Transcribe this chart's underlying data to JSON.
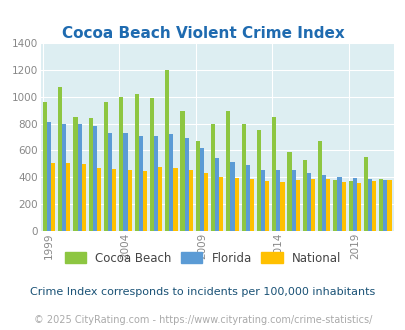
{
  "title": "Cocoa Beach Violent Crime Index",
  "subtitle": "Crime Index corresponds to incidents per 100,000 inhabitants",
  "footer": "© 2025 CityRating.com - https://www.cityrating.com/crime-statistics/",
  "years": [
    1999,
    2000,
    2001,
    2002,
    2003,
    2004,
    2005,
    2006,
    2007,
    2008,
    2009,
    2010,
    2011,
    2012,
    2013,
    2014,
    2015,
    2016,
    2017,
    2018,
    2019,
    2020,
    2021
  ],
  "cocoa_beach": [
    960,
    1070,
    850,
    840,
    960,
    1000,
    1020,
    990,
    1200,
    890,
    670,
    800,
    890,
    800,
    750,
    845,
    585,
    530,
    670,
    380,
    375,
    550,
    390
  ],
  "florida": [
    810,
    800,
    800,
    780,
    730,
    730,
    710,
    710,
    725,
    690,
    615,
    545,
    510,
    490,
    455,
    455,
    455,
    430,
    415,
    400,
    395,
    390,
    380
  ],
  "national": [
    505,
    505,
    500,
    470,
    465,
    455,
    450,
    475,
    470,
    455,
    430,
    405,
    395,
    390,
    370,
    365,
    380,
    385,
    390,
    365,
    360,
    375,
    380
  ],
  "bar_colors": {
    "cocoa_beach": "#8dc641",
    "florida": "#5b9bd5",
    "national": "#ffc000"
  },
  "bg_color": "#ddeef2",
  "ylim": [
    0,
    1400
  ],
  "yticks": [
    0,
    200,
    400,
    600,
    800,
    1000,
    1200,
    1400
  ],
  "xtick_years": [
    1999,
    2004,
    2009,
    2014,
    2019
  ],
  "title_color": "#1f6bb0",
  "title_fontsize": 11,
  "axis_color": "#888888",
  "legend_labels": [
    "Cocoa Beach",
    "Florida",
    "National"
  ],
  "subtitle_color": "#1a5276",
  "footer_color": "#aaaaaa",
  "subtitle_fontsize": 8,
  "footer_fontsize": 7,
  "legend_fontsize": 8.5
}
